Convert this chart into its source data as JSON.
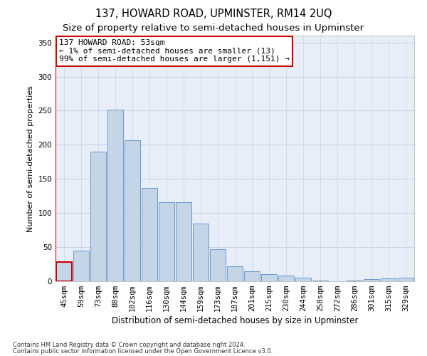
{
  "title": "137, HOWARD ROAD, UPMINSTER, RM14 2UQ",
  "subtitle": "Size of property relative to semi-detached houses in Upminster",
  "xlabel": "Distribution of semi-detached houses by size in Upminster",
  "ylabel": "Number of semi-detached properties",
  "annotation_title": "137 HOWARD ROAD: 53sqm",
  "annotation_line2": "← 1% of semi-detached houses are smaller (13)",
  "annotation_line3": "99% of semi-detached houses are larger (1,151) →",
  "footer1": "Contains HM Land Registry data © Crown copyright and database right 2024.",
  "footer2": "Contains public sector information licensed under the Open Government Licence v3.0.",
  "categories": [
    "45sqm",
    "59sqm",
    "73sqm",
    "88sqm",
    "102sqm",
    "116sqm",
    "130sqm",
    "144sqm",
    "159sqm",
    "173sqm",
    "187sqm",
    "201sqm",
    "215sqm",
    "230sqm",
    "244sqm",
    "258sqm",
    "272sqm",
    "286sqm",
    "301sqm",
    "315sqm",
    "329sqm"
  ],
  "values": [
    28,
    45,
    190,
    252,
    207,
    137,
    116,
    116,
    85,
    47,
    22,
    15,
    10,
    8,
    5,
    1,
    0,
    1,
    3,
    4,
    5
  ],
  "bar_color": "#c5d5e8",
  "bar_edge_color": "#5b8ec4",
  "annotation_box_color": "#ffffff",
  "annotation_box_edge_color": "#cc0000",
  "highlight_bar_index": 0,
  "highlight_bar_edge_color": "#cc0000",
  "ylim": [
    0,
    360
  ],
  "yticks": [
    0,
    50,
    100,
    150,
    200,
    250,
    300,
    350
  ],
  "grid_color": "#c8d4e8",
  "background_color": "#e8eef8",
  "title_fontsize": 10.5,
  "subtitle_fontsize": 9.5,
  "ylabel_fontsize": 8,
  "xlabel_fontsize": 8.5,
  "tick_fontsize": 7.5,
  "ann_fontsize": 8
}
